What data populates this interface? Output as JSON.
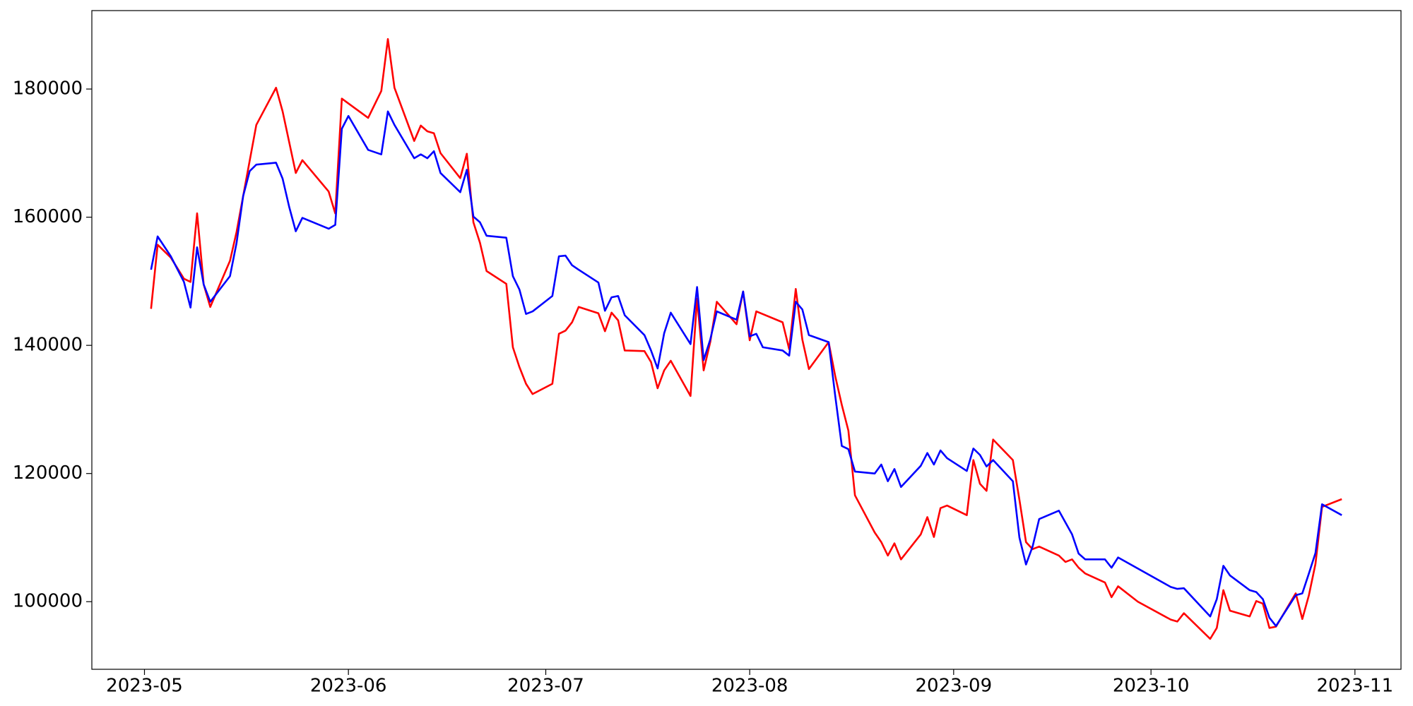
{
  "chart_data": {
    "type": "line",
    "xlim": [
      "2023-04-23",
      "2023-11-08"
    ],
    "xticks": [
      "2023-05",
      "2023-06",
      "2023-07",
      "2023-08",
      "2023-09",
      "2023-10",
      "2023-11"
    ],
    "ylim": [
      89450,
      192240
    ],
    "yticks": [
      100000,
      120000,
      140000,
      160000,
      180000
    ],
    "grid": false,
    "series": [
      {
        "color": "#ff0000",
        "x": [
          "2023-05-02",
          "2023-05-03",
          "2023-05-05",
          "2023-05-07",
          "2023-05-08",
          "2023-05-09",
          "2023-05-10",
          "2023-05-11",
          "2023-05-14",
          "2023-05-15",
          "2023-05-16",
          "2023-05-18",
          "2023-05-21",
          "2023-05-22",
          "2023-05-24",
          "2023-05-25",
          "2023-05-29",
          "2023-05-30",
          "2023-05-31",
          "2023-06-04",
          "2023-06-06",
          "2023-06-07",
          "2023-06-08",
          "2023-06-11",
          "2023-06-12",
          "2023-06-13",
          "2023-06-14",
          "2023-06-15",
          "2023-06-18",
          "2023-06-19",
          "2023-06-20",
          "2023-06-21",
          "2023-06-22",
          "2023-06-25",
          "2023-06-26",
          "2023-06-27",
          "2023-06-28",
          "2023-06-29",
          "2023-07-02",
          "2023-07-03",
          "2023-07-04",
          "2023-07-05",
          "2023-07-06",
          "2023-07-09",
          "2023-07-10",
          "2023-07-11",
          "2023-07-12",
          "2023-07-13",
          "2023-07-16",
          "2023-07-17",
          "2023-07-18",
          "2023-07-19",
          "2023-07-20",
          "2023-07-23",
          "2023-07-24",
          "2023-07-25",
          "2023-07-26",
          "2023-07-27",
          "2023-07-30",
          "2023-07-31",
          "2023-08-01",
          "2023-08-02",
          "2023-08-06",
          "2023-08-07",
          "2023-08-08",
          "2023-08-09",
          "2023-08-10",
          "2023-08-13",
          "2023-08-14",
          "2023-08-15",
          "2023-08-16",
          "2023-08-17",
          "2023-08-20",
          "2023-08-21",
          "2023-08-22",
          "2023-08-23",
          "2023-08-24",
          "2023-08-27",
          "2023-08-28",
          "2023-08-29",
          "2023-08-30",
          "2023-08-31",
          "2023-09-03",
          "2023-09-04",
          "2023-09-05",
          "2023-09-06",
          "2023-09-07",
          "2023-09-10",
          "2023-09-11",
          "2023-09-12",
          "2023-09-13",
          "2023-09-14",
          "2023-09-17",
          "2023-09-18",
          "2023-09-19",
          "2023-09-20",
          "2023-09-21",
          "2023-09-24",
          "2023-09-25",
          "2023-09-26",
          "2023-09-29",
          "2023-10-04",
          "2023-10-05",
          "2023-10-06",
          "2023-10-10",
          "2023-10-11",
          "2023-10-12",
          "2023-10-13",
          "2023-10-16",
          "2023-10-17",
          "2023-10-18",
          "2023-10-19",
          "2023-10-20",
          "2023-10-23",
          "2023-10-24",
          "2023-10-25",
          "2023-10-26",
          "2023-10-27",
          "2023-10-30"
        ],
        "values": [
          145700,
          155700,
          153700,
          150400,
          149900,
          160600,
          149500,
          146000,
          153200,
          157700,
          163300,
          174400,
          180200,
          176500,
          166900,
          168900,
          164000,
          160600,
          178500,
          175500,
          179700,
          187800,
          180200,
          171900,
          174300,
          173400,
          173100,
          170000,
          166100,
          169900,
          159200,
          156000,
          151600,
          149600,
          139700,
          136600,
          134000,
          132400,
          134000,
          141800,
          142300,
          143600,
          146000,
          145000,
          142200,
          145100,
          143900,
          139200,
          139100,
          137400,
          133300,
          136100,
          137600,
          132100,
          147300,
          136100,
          140500,
          146800,
          143300,
          148400,
          140800,
          145300,
          143600,
          139400,
          148800,
          140900,
          136300,
          140500,
          135200,
          130700,
          126700,
          116600,
          110800,
          109300,
          107200,
          109100,
          106600,
          110500,
          113200,
          110100,
          114600,
          115000,
          113500,
          122100,
          118400,
          117300,
          125300,
          122100,
          115900,
          109300,
          108200,
          108600,
          107200,
          106200,
          106600,
          105300,
          104400,
          103000,
          100700,
          102400,
          100000,
          97200,
          96900,
          98200,
          94200,
          95900,
          101800,
          98600,
          97700,
          100100,
          99700,
          95900,
          96100,
          101300,
          97300,
          101000,
          105900,
          114800,
          116000
        ]
      },
      {
        "color": "#0000ff",
        "x": [
          "2023-05-02",
          "2023-05-03",
          "2023-05-05",
          "2023-05-07",
          "2023-05-08",
          "2023-05-09",
          "2023-05-10",
          "2023-05-11",
          "2023-05-14",
          "2023-05-15",
          "2023-05-16",
          "2023-05-17",
          "2023-05-18",
          "2023-05-21",
          "2023-05-22",
          "2023-05-23",
          "2023-05-24",
          "2023-05-25",
          "2023-05-29",
          "2023-05-30",
          "2023-05-31",
          "2023-06-01",
          "2023-06-04",
          "2023-06-06",
          "2023-06-07",
          "2023-06-08",
          "2023-06-11",
          "2023-06-12",
          "2023-06-13",
          "2023-06-14",
          "2023-06-15",
          "2023-06-18",
          "2023-06-19",
          "2023-06-20",
          "2023-06-21",
          "2023-06-22",
          "2023-06-25",
          "2023-06-26",
          "2023-06-27",
          "2023-06-28",
          "2023-06-29",
          "2023-07-02",
          "2023-07-03",
          "2023-07-04",
          "2023-07-05",
          "2023-07-06",
          "2023-07-09",
          "2023-07-10",
          "2023-07-11",
          "2023-07-12",
          "2023-07-13",
          "2023-07-16",
          "2023-07-17",
          "2023-07-18",
          "2023-07-19",
          "2023-07-20",
          "2023-07-23",
          "2023-07-24",
          "2023-07-25",
          "2023-07-26",
          "2023-07-27",
          "2023-07-30",
          "2023-07-31",
          "2023-08-01",
          "2023-08-02",
          "2023-08-03",
          "2023-08-06",
          "2023-08-07",
          "2023-08-08",
          "2023-08-09",
          "2023-08-10",
          "2023-08-13",
          "2023-08-14",
          "2023-08-15",
          "2023-08-16",
          "2023-08-17",
          "2023-08-20",
          "2023-08-21",
          "2023-08-22",
          "2023-08-23",
          "2023-08-24",
          "2023-08-27",
          "2023-08-28",
          "2023-08-29",
          "2023-08-30",
          "2023-08-31",
          "2023-09-03",
          "2023-09-04",
          "2023-09-05",
          "2023-09-06",
          "2023-09-07",
          "2023-09-10",
          "2023-09-11",
          "2023-09-12",
          "2023-09-13",
          "2023-09-14",
          "2023-09-17",
          "2023-09-19",
          "2023-09-20",
          "2023-09-21",
          "2023-09-24",
          "2023-09-25",
          "2023-09-26",
          "2023-10-04",
          "2023-10-05",
          "2023-10-06",
          "2023-10-10",
          "2023-10-11",
          "2023-10-12",
          "2023-10-13",
          "2023-10-16",
          "2023-10-17",
          "2023-10-18",
          "2023-10-19",
          "2023-10-20",
          "2023-10-23",
          "2023-10-24",
          "2023-10-25",
          "2023-10-26",
          "2023-10-27",
          "2023-10-30"
        ],
        "values": [
          151800,
          157000,
          153900,
          149900,
          145900,
          155300,
          149500,
          146800,
          150800,
          156000,
          163300,
          167200,
          168200,
          168500,
          166000,
          161600,
          157800,
          159900,
          158200,
          158800,
          173800,
          175800,
          170500,
          169800,
          176500,
          174400,
          169200,
          169800,
          169200,
          170300,
          166900,
          163900,
          167400,
          160100,
          159200,
          157100,
          156800,
          150800,
          148700,
          144900,
          145300,
          147700,
          153900,
          154000,
          152500,
          151800,
          149800,
          145400,
          147500,
          147700,
          144700,
          141600,
          139200,
          136400,
          141900,
          145100,
          140200,
          149100,
          137700,
          140900,
          145300,
          144000,
          148400,
          141400,
          141800,
          139700,
          139200,
          138400,
          146800,
          145600,
          141600,
          140500,
          132100,
          124300,
          123800,
          120300,
          120000,
          121400,
          118800,
          120700,
          117900,
          121200,
          123200,
          121400,
          123600,
          122400,
          120400,
          123900,
          122900,
          121100,
          122100,
          118800,
          110000,
          105800,
          108600,
          112900,
          114200,
          110500,
          107500,
          106600,
          106600,
          105300,
          106900,
          102300,
          102000,
          102100,
          97700,
          100400,
          105600,
          104100,
          101800,
          101500,
          100400,
          97500,
          96200,
          101000,
          101300,
          104400,
          107600,
          115200,
          113500
        ]
      }
    ]
  }
}
